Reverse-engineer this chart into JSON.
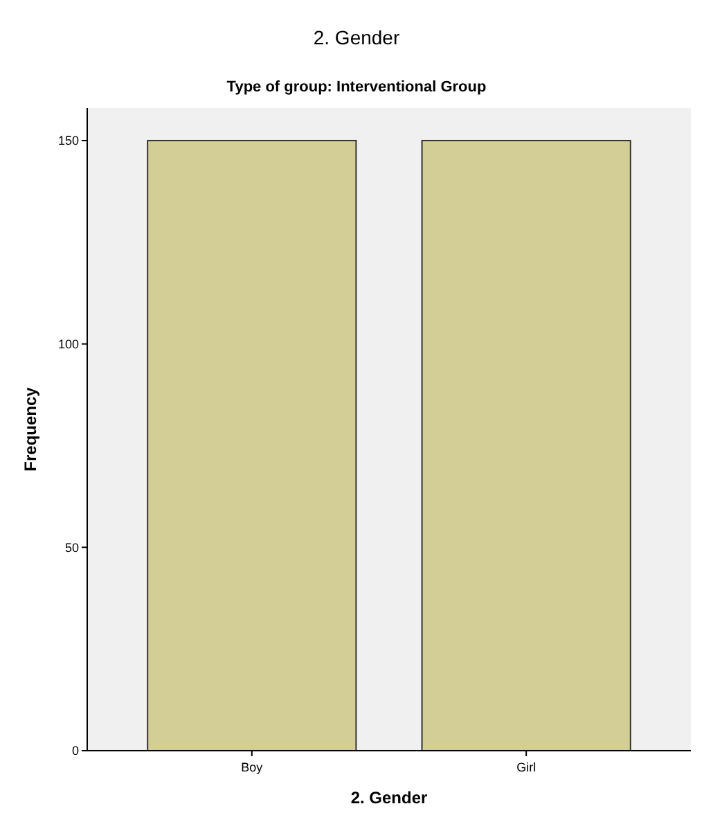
{
  "chart_data": {
    "type": "bar",
    "title": "2. Gender",
    "subtitle": "Type of group: Interventional Group",
    "xlabel": "2. Gender",
    "ylabel": "Frequency",
    "categories": [
      "Boy",
      "Girl"
    ],
    "values": [
      150,
      150
    ],
    "color": "#d3cd96",
    "ylim": [
      0,
      158
    ],
    "yticks": [
      0,
      50,
      100,
      150
    ],
    "grid": false
  }
}
